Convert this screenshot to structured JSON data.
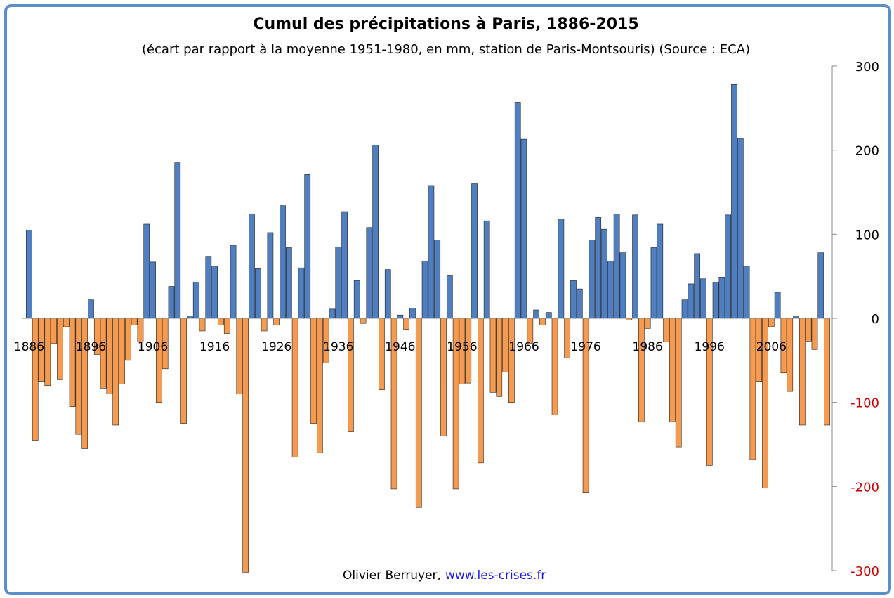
{
  "chart_data": {
    "type": "bar",
    "title": "Cumul des précipitations à Paris, 1886-2015",
    "subtitle": "(écart par rapport à la moyenne 1951-1980, en mm, station de Paris-Montsouris) (Source : ECA)",
    "y_axis_side": "right",
    "ylim": [
      -300,
      300
    ],
    "y_ticks": [
      300,
      200,
      100,
      0,
      -100,
      -200,
      -300
    ],
    "x_tick_labels": [
      "1886",
      "1896",
      "1906",
      "1916",
      "1926",
      "1936",
      "1946",
      "1956",
      "1966",
      "1976",
      "1986",
      "1996",
      "2006"
    ],
    "x_start": 1886,
    "values": [
      105,
      -145,
      -75,
      -80,
      -30,
      -73,
      -10,
      -105,
      -138,
      -155,
      22,
      -43,
      -83,
      -90,
      -127,
      -78,
      -50,
      -8,
      -28,
      112,
      67,
      -100,
      -60,
      38,
      185,
      -125,
      2,
      43,
      -15,
      73,
      62,
      -8,
      -18,
      87,
      -90,
      -302,
      124,
      59,
      -15,
      102,
      -8,
      134,
      84,
      -165,
      60,
      171,
      -125,
      -160,
      -53,
      11,
      85,
      127,
      -135,
      45,
      -6,
      108,
      206,
      -85,
      58,
      -203,
      4,
      -13,
      12,
      -225,
      68,
      158,
      93,
      -140,
      51,
      -203,
      -78,
      -77,
      160,
      -172,
      116,
      -88,
      -93,
      -64,
      -100,
      257,
      213,
      -30,
      10,
      -8,
      7,
      -115,
      118,
      -47,
      45,
      35,
      -207,
      93,
      120,
      106,
      68,
      124,
      78,
      -2,
      123,
      -123,
      -12,
      84,
      112,
      -28,
      -123,
      -153,
      22,
      41,
      77,
      47,
      -175,
      43,
      49,
      123,
      278,
      214,
      62,
      -168,
      -75,
      -202,
      -10,
      31,
      -65,
      -87,
      2,
      -127,
      -27,
      -37,
      78,
      -127
    ],
    "positive_color": "#4f7fc0",
    "negative_color": "#f59a4e",
    "negative_tick_color": "#cc0000"
  },
  "credit": {
    "author": "Olivier Berruyer,",
    "link": "www.les-crises.fr"
  }
}
